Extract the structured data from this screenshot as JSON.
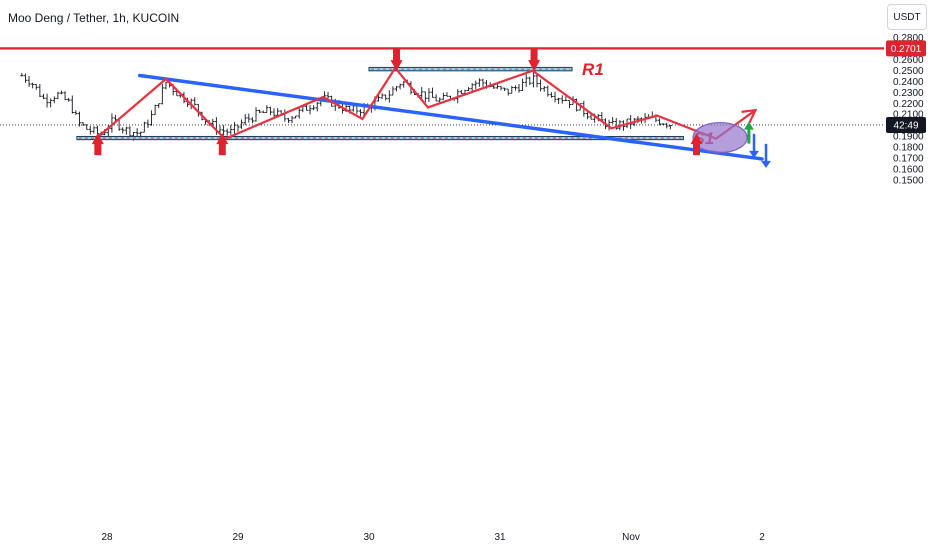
{
  "header": {
    "title": "Moo Deng / Tether, 1h, KUCOIN",
    "currency": "USDT"
  },
  "chart_data": {
    "type": "candlestick",
    "title": "Moo Deng / Tether, 1h, KUCOIN",
    "ylim": [
      0.145,
      0.286
    ],
    "y_ticks": [
      "0.2800",
      "0.2700",
      "0.2600",
      "0.2500",
      "0.2400",
      "0.2300",
      "0.2200",
      "0.2100",
      "0.2000",
      "0.1900",
      "0.1800",
      "0.1700",
      "0.1600",
      "0.1500"
    ],
    "x_ticks": [
      "28",
      "29",
      "30",
      "31",
      "Nov",
      "2"
    ],
    "price_badges": [
      {
        "text": "0.2701",
        "value": 0.2701,
        "color": "#e0212e"
      },
      {
        "text": "42:49",
        "value": 0.2002,
        "color": "#131722"
      }
    ],
    "resistance_zone": {
      "label": "R1",
      "low": 0.2496,
      "high": 0.2527,
      "x_start": 30.0,
      "x_end": 31.55
    },
    "support_zone": {
      "label": "S1",
      "low": 0.1868,
      "high": 0.1897,
      "x_start": 27.77,
      "x_end": 32.4
    },
    "horizontal_line": {
      "value": 0.2701,
      "color": "#e0212e"
    },
    "current_price": 0.2002,
    "trendline": [
      [
        28.25,
        0.2453
      ],
      [
        33.0,
        0.1692
      ]
    ],
    "zigzag": [
      [
        27.92,
        0.1882
      ],
      [
        28.45,
        0.2422
      ],
      [
        28.9,
        0.1875
      ],
      [
        29.65,
        0.2257
      ],
      [
        29.95,
        0.2057
      ],
      [
        30.2,
        0.2522
      ],
      [
        30.45,
        0.2162
      ],
      [
        31.25,
        0.2497
      ],
      [
        31.85,
        0.1972
      ],
      [
        32.2,
        0.2087
      ],
      [
        32.65,
        0.1877
      ],
      [
        32.95,
        0.2138
      ]
    ],
    "arrows": [
      {
        "kind": "down",
        "x": 30.21,
        "y": 0.2594,
        "color": "#e0212e"
      },
      {
        "kind": "down",
        "x": 31.26,
        "y": 0.2594,
        "color": "#e0212e"
      },
      {
        "kind": "up",
        "x": 27.93,
        "y": 0.1827,
        "color": "#e0212e"
      },
      {
        "kind": "up",
        "x": 28.88,
        "y": 0.1827,
        "color": "#e0212e"
      },
      {
        "kind": "up",
        "x": 32.5,
        "y": 0.1827,
        "color": "#e0212e"
      },
      {
        "kind": "up-small",
        "x": 32.9,
        "y": 0.1932,
        "color": "#22a347"
      },
      {
        "kind": "double-down",
        "x": 33.0,
        "y": 0.1775,
        "color": "#2962ff"
      }
    ],
    "breakout_ellipse": {
      "x": 32.68,
      "y": 0.1887
    },
    "price_path": [
      [
        27.35,
        0.2452
      ],
      [
        27.42,
        0.24
      ],
      [
        27.52,
        0.2232
      ],
      [
        27.62,
        0.2282
      ],
      [
        27.72,
        0.2195
      ],
      [
        27.78,
        0.2022
      ],
      [
        27.85,
        0.1962
      ],
      [
        27.95,
        0.1912
      ],
      [
        28.05,
        0.2042
      ],
      [
        28.15,
        0.1952
      ],
      [
        28.25,
        0.1925
      ],
      [
        28.35,
        0.21
      ],
      [
        28.45,
        0.2392
      ],
      [
        28.55,
        0.228
      ],
      [
        28.65,
        0.2202
      ],
      [
        28.75,
        0.205
      ],
      [
        28.85,
        0.196
      ],
      [
        28.95,
        0.1935
      ],
      [
        29.05,
        0.2042
      ],
      [
        29.15,
        0.21
      ],
      [
        29.25,
        0.213
      ],
      [
        29.35,
        0.2062
      ],
      [
        29.45,
        0.2102
      ],
      [
        29.55,
        0.2182
      ],
      [
        29.65,
        0.224
      ],
      [
        29.75,
        0.2192
      ],
      [
        29.85,
        0.213
      ],
      [
        29.95,
        0.2152
      ],
      [
        30.05,
        0.2202
      ],
      [
        30.15,
        0.2282
      ],
      [
        30.25,
        0.24
      ],
      [
        30.35,
        0.232
      ],
      [
        30.45,
        0.2262
      ],
      [
        30.55,
        0.2222
      ],
      [
        30.65,
        0.228
      ],
      [
        30.75,
        0.2362
      ],
      [
        30.85,
        0.24
      ],
      [
        30.95,
        0.2342
      ],
      [
        31.05,
        0.2302
      ],
      [
        31.15,
        0.236
      ],
      [
        31.25,
        0.242
      ],
      [
        31.35,
        0.2322
      ],
      [
        31.45,
        0.226
      ],
      [
        31.55,
        0.221
      ],
      [
        31.65,
        0.212
      ],
      [
        31.75,
        0.205
      ],
      [
        31.85,
        0.1992
      ],
      [
        31.95,
        0.2012
      ],
      [
        32.05,
        0.204
      ],
      [
        32.15,
        0.206
      ],
      [
        32.25,
        0.203
      ],
      [
        32.32,
        0.2002
      ]
    ]
  }
}
